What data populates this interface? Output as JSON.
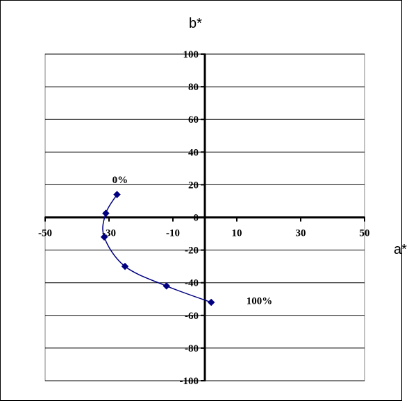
{
  "chart_data": {
    "type": "scatter",
    "title": "",
    "xlabel": "a*",
    "ylabel": "b*",
    "xlim": [
      -50,
      50
    ],
    "ylim": [
      -100,
      100
    ],
    "x_ticks": [
      -50,
      -30,
      -10,
      10,
      30,
      50
    ],
    "y_ticks": [
      100,
      80,
      60,
      40,
      20,
      0,
      -20,
      -40,
      -60,
      -80,
      -100
    ],
    "x_tick_labels": [
      "-50",
      "-30",
      "-10",
      "10",
      "30",
      "50"
    ],
    "y_tick_labels": [
      "100",
      "80",
      "60",
      "40",
      "20",
      "0",
      "-20",
      "-40",
      "-60",
      "-80",
      "-100"
    ],
    "grid": "horizontal",
    "series": [
      {
        "x": [
          -27.5,
          -31,
          -31.5,
          -25,
          -12,
          2
        ],
        "y": [
          14,
          2.5,
          -12,
          -30,
          -42,
          -52
        ],
        "color": "#000080",
        "marker": "diamond",
        "smooth_line": true
      }
    ],
    "annotations": [
      {
        "text": "0%",
        "x": -29,
        "y": 21
      },
      {
        "text": "100%",
        "x": 13,
        "y": -53
      }
    ]
  }
}
